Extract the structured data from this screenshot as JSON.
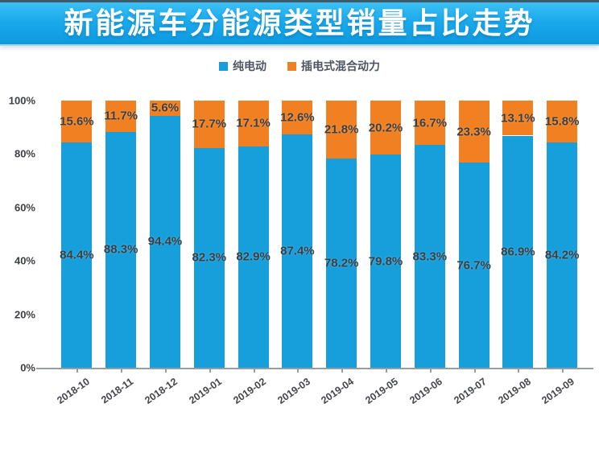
{
  "title": "新能源车分能源类型销量占比走势",
  "colors": {
    "pure_electric": "#179fdb",
    "plugin_hybrid": "#f08021",
    "axis": "#9a9da0",
    "label_text": "#3c3e42"
  },
  "chart_data": {
    "type": "bar",
    "stacked": true,
    "title": "新能源车分能源类型销量占比走势",
    "categories": [
      "2018-10",
      "2018-11",
      "2018-12",
      "2019-01",
      "2019-02",
      "2019-03",
      "2019-04",
      "2019-05",
      "2019-06",
      "2019-07",
      "2019-08",
      "2019-09"
    ],
    "series": [
      {
        "name": "纯电动",
        "color": "#179fdb",
        "values": [
          84.4,
          88.3,
          94.4,
          82.3,
          82.9,
          87.4,
          78.2,
          79.8,
          83.3,
          76.7,
          86.9,
          84.2
        ]
      },
      {
        "name": "插电式混合动力",
        "color": "#f08021",
        "values": [
          15.6,
          11.7,
          5.6,
          17.7,
          17.1,
          12.6,
          21.8,
          20.2,
          16.7,
          23.3,
          13.1,
          15.8
        ]
      }
    ],
    "value_suffix": "%",
    "y_ticks": [
      "0%",
      "20%",
      "40%",
      "60%",
      "80%",
      "100%"
    ],
    "y_tick_values": [
      0,
      20,
      40,
      60,
      80,
      100
    ],
    "ylim": [
      0,
      100
    ],
    "xlabel": "",
    "ylabel": "",
    "grid": false,
    "legend_position": "top"
  }
}
